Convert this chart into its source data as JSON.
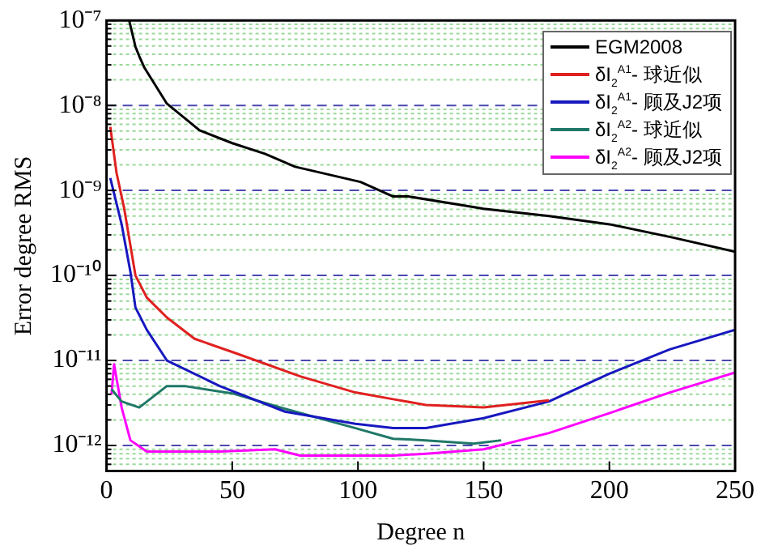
{
  "chart_data": {
    "type": "line",
    "xlabel": "Degree n",
    "ylabel": "Error degree RMS",
    "log": "y",
    "grid": "y",
    "legend": "top right",
    "line_style": "solid",
    "marker": "none",
    "xlim": [
      0,
      250
    ],
    "xticks": [
      0,
      50,
      100,
      150,
      200,
      250
    ],
    "ylim": [
      5e-13,
      1e-07
    ],
    "yticks": [
      {
        "value": 1e-12,
        "label": "10⁻¹²"
      },
      {
        "value": 1e-11,
        "label": "10⁻¹¹"
      },
      {
        "value": 1e-10,
        "label": "10⁻¹⁰"
      },
      {
        "value": 1e-09,
        "label": "10⁻⁹"
      },
      {
        "value": 1e-08,
        "label": "10⁻⁸"
      },
      {
        "value": 1e-07,
        "label": "10⁻⁷"
      },
      {
        "value": 6e-13,
        "label": null
      },
      {
        "value": 7e-13,
        "label": null
      },
      {
        "value": 8e-13,
        "label": null
      },
      {
        "value": 9e-13,
        "label": null
      },
      {
        "value": 2e-12,
        "label": null
      },
      {
        "value": 3e-12,
        "label": null
      },
      {
        "value": 4e-12,
        "label": null
      },
      {
        "value": 5e-12,
        "label": null
      },
      {
        "value": 6e-12,
        "label": null
      },
      {
        "value": 7e-12,
        "label": null
      },
      {
        "value": 8e-12,
        "label": null
      },
      {
        "value": 9e-12,
        "label": null
      },
      {
        "value": 2e-11,
        "label": null
      },
      {
        "value": 3e-11,
        "label": null
      },
      {
        "value": 4e-11,
        "label": null
      },
      {
        "value": 5e-11,
        "label": null
      },
      {
        "value": 6e-11,
        "label": null
      },
      {
        "value": 7e-11,
        "label": null
      },
      {
        "value": 8e-11,
        "label": null
      },
      {
        "value": 9e-11,
        "label": null
      },
      {
        "value": 2e-10,
        "label": null
      },
      {
        "value": 3e-10,
        "label": null
      },
      {
        "value": 4e-10,
        "label": null
      },
      {
        "value": 5e-10,
        "label": null
      },
      {
        "value": 6e-10,
        "label": null
      },
      {
        "value": 7e-10,
        "label": null
      },
      {
        "value": 8e-10,
        "label": null
      },
      {
        "value": 9e-10,
        "label": null
      },
      {
        "value": 2e-09,
        "label": null
      },
      {
        "value": 3e-09,
        "label": null
      },
      {
        "value": 4e-09,
        "label": null
      },
      {
        "value": 5e-09,
        "label": null
      },
      {
        "value": 6e-09,
        "label": null
      },
      {
        "value": 7e-09,
        "label": null
      },
      {
        "value": 8e-09,
        "label": null
      },
      {
        "value": 9e-09,
        "label": null
      },
      {
        "value": 2e-08,
        "label": null
      },
      {
        "value": 3e-08,
        "label": null
      },
      {
        "value": 4e-08,
        "label": null
      },
      {
        "value": 5e-08,
        "label": null
      },
      {
        "value": 6e-08,
        "label": null
      },
      {
        "value": 7e-08,
        "label": null
      },
      {
        "value": 8e-08,
        "label": null
      },
      {
        "value": 9e-08,
        "label": null
      }
    ],
    "series": [
      {
        "name": "EGM2008",
        "color": "#000000",
        "x": [
          9,
          11.5,
          13,
          15,
          24,
          37,
          50,
          63,
          75,
          101,
          114,
          120,
          150,
          176,
          200,
          225,
          250
        ],
        "values": [
          1e-07,
          4.9e-08,
          3.8e-08,
          2.8e-08,
          1.05e-08,
          5.1e-09,
          3.6e-09,
          2.7e-09,
          1.9e-09,
          1.26e-09,
          8.5e-10,
          8.5e-10,
          6.1e-10,
          5e-10,
          4e-10,
          2.8e-10,
          1.9e-10
        ]
      },
      {
        "name": "δI$_{2}$$^{A1}$- 球近似",
        "color": "#e02020",
        "x": [
          1.5,
          4,
          7,
          11.5,
          16,
          24,
          35,
          52,
          77,
          99,
          114,
          127,
          150,
          176
        ],
        "values": [
          5.6e-09,
          1.6e-09,
          6.2e-10,
          1e-10,
          5.5e-11,
          3.2e-11,
          1.8e-11,
          1.2e-11,
          6.5e-12,
          4.2e-12,
          3.5e-12,
          3e-12,
          2.8e-12,
          3.4e-12
        ]
      },
      {
        "name": "δI$_{2}$$^{A1}$- 顾及J2项",
        "color": "#1818c0",
        "x": [
          1.5,
          6,
          9.5,
          11.5,
          16,
          24,
          45,
          71,
          99,
          114,
          127,
          150,
          176,
          200,
          224,
          250
        ],
        "values": [
          1.4e-09,
          4e-10,
          1.1e-10,
          4.2e-11,
          2.3e-11,
          1e-11,
          5e-12,
          2.5e-12,
          1.8e-12,
          1.6e-12,
          1.6e-12,
          2.1e-12,
          3.3e-12,
          7e-12,
          1.35e-11,
          2.3e-11
        ]
      },
      {
        "name": "δI$_{2}$$^{A2}$- 球近似",
        "color": "#207868",
        "x": [
          2,
          6,
          13,
          24,
          31,
          50,
          71,
          99,
          114,
          127,
          146,
          157
        ],
        "values": [
          4.6e-12,
          3.3e-12,
          2.8e-12,
          5e-12,
          5e-12,
          4.1e-12,
          2.7e-12,
          1.6e-12,
          1.2e-12,
          1.15e-12,
          1.05e-12,
          1.15e-12
        ]
      },
      {
        "name": "δI$_{2}$$^{A2}$- 顾及J2项",
        "color": "#ff00ff",
        "x": [
          2,
          3,
          6,
          9.5,
          16,
          45,
          67,
          77,
          105,
          114,
          127,
          150,
          176,
          200,
          224,
          250
        ],
        "values": [
          4e-12,
          9e-12,
          2.8e-12,
          1.15e-12,
          8.5e-13,
          8.5e-13,
          9e-13,
          7.6e-13,
          7.6e-13,
          7.6e-13,
          8e-13,
          9e-13,
          1.4e-12,
          2.4e-12,
          4.2e-12,
          7.2e-12
        ]
      }
    ]
  }
}
